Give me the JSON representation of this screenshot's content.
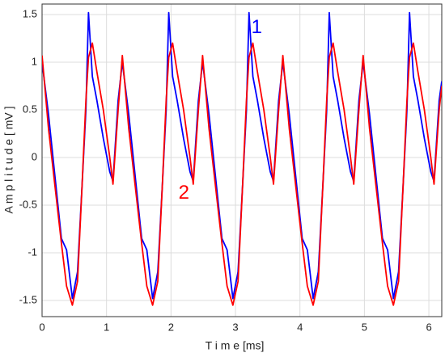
{
  "chart_data": {
    "type": "line",
    "xlabel": "T i m e [ms]",
    "ylabel": "A m p l i t u d e [ mV ]",
    "x": [
      0,
      0.1,
      0.2,
      0.3,
      0.38,
      0.47,
      0.55,
      0.62,
      0.68,
      0.72,
      0.78,
      0.85,
      0.95,
      1.05,
      1.1,
      1.18,
      1.245,
      1.345,
      1.445,
      1.545,
      1.625,
      1.715,
      1.795,
      1.865,
      1.925,
      1.965,
      2.025,
      2.095,
      2.195,
      2.295,
      2.345,
      2.425,
      2.49,
      2.59,
      2.69,
      2.79,
      2.87,
      2.96,
      3.04,
      3.11,
      3.17,
      3.21,
      3.27,
      3.34,
      3.44,
      3.54,
      3.59,
      3.67,
      3.735,
      3.835,
      3.935,
      4.035,
      4.115,
      4.205,
      4.285,
      4.355,
      4.415,
      4.455,
      4.515,
      4.585,
      4.685,
      4.785,
      4.835,
      4.915,
      4.98,
      5.08,
      5.18,
      5.28,
      5.36,
      5.45,
      5.53,
      5.6,
      5.66,
      5.7,
      5.76,
      5.83,
      5.93,
      6.03,
      6.08,
      6.16,
      6.2
    ],
    "series": [
      {
        "color": "#0000ff",
        "values": [
          1.0,
          0.45,
          -0.2,
          -0.85,
          -0.97,
          -1.48,
          -1.2,
          -0.3,
          0.5,
          1.52,
          0.85,
          0.6,
          0.2,
          -0.15,
          -0.25,
          0.6,
          1.0,
          0.45,
          -0.2,
          -0.85,
          -0.97,
          -1.48,
          -1.2,
          -0.3,
          0.5,
          1.52,
          0.85,
          0.6,
          0.2,
          -0.15,
          -0.25,
          0.6,
          1.0,
          0.45,
          -0.2,
          -0.85,
          -0.97,
          -1.48,
          -1.2,
          -0.3,
          0.5,
          1.52,
          0.85,
          0.6,
          0.2,
          -0.15,
          -0.25,
          0.6,
          1.0,
          0.45,
          -0.2,
          -0.85,
          -0.97,
          -1.48,
          -1.2,
          -0.3,
          0.5,
          1.52,
          0.85,
          0.6,
          0.2,
          -0.15,
          -0.25,
          0.6,
          1.0,
          0.45,
          -0.2,
          -0.85,
          -0.97,
          -1.48,
          -1.2,
          -0.3,
          0.5,
          1.52,
          0.85,
          0.6,
          0.2,
          -0.15,
          -0.25,
          0.6,
          0.8
        ]
      },
      {
        "color": "#ff0000",
        "values": [
          1.07,
          0.3,
          -0.3,
          -0.9,
          -1.35,
          -1.55,
          -1.3,
          -0.3,
          0.6,
          1.05,
          1.2,
          0.9,
          0.5,
          0.0,
          -0.28,
          0.5,
          1.07,
          0.3,
          -0.3,
          -0.9,
          -1.35,
          -1.55,
          -1.3,
          -0.3,
          0.6,
          1.05,
          1.2,
          0.9,
          0.5,
          0.0,
          -0.28,
          0.5,
          1.07,
          0.3,
          -0.3,
          -0.9,
          -1.35,
          -1.55,
          -1.3,
          -0.3,
          0.6,
          1.05,
          1.2,
          0.9,
          0.5,
          0.0,
          -0.28,
          0.5,
          1.07,
          0.3,
          -0.3,
          -0.9,
          -1.35,
          -1.55,
          -1.3,
          -0.3,
          0.6,
          1.05,
          1.2,
          0.9,
          0.5,
          0.0,
          -0.28,
          0.5,
          1.07,
          0.3,
          -0.3,
          -0.9,
          -1.35,
          -1.55,
          -1.3,
          -0.3,
          0.6,
          1.05,
          1.2,
          0.9,
          0.5,
          0.0,
          -0.28,
          0.5,
          0.75
        ]
      }
    ],
    "annotations": [
      {
        "text": "1",
        "x": 3.33,
        "y": 1.36,
        "color": "#0000ff"
      },
      {
        "text": "2",
        "x": 2.2,
        "y": -0.38,
        "color": "#ff0000"
      }
    ],
    "xlim": [
      0,
      6.2
    ],
    "xticks": [
      0,
      1,
      2,
      3,
      4,
      5,
      6
    ],
    "ylim": [
      -1.67,
      1.61
    ],
    "yticks": [
      -1.5,
      -1,
      -0.5,
      0,
      0.5,
      1,
      1.5
    ],
    "grid": true
  }
}
